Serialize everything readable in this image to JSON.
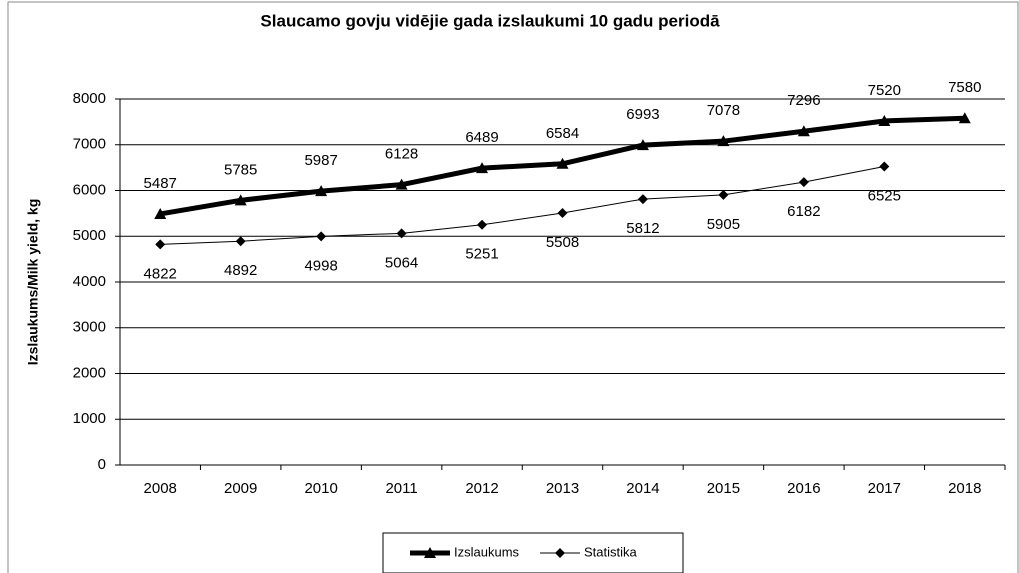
{
  "chart_data": {
    "type": "line",
    "title": "Slaucamo govju vidējie gada izslaukumi 10 gadu periodā",
    "y_label": "Izslaukums/Milk yield, kg",
    "categories": [
      "2008",
      "2009",
      "2010",
      "2011",
      "2012",
      "2013",
      "2014",
      "2015",
      "2016",
      "2017",
      "2018"
    ],
    "series": [
      {
        "name": "Izslaukums",
        "color": "#000000",
        "marker": "triangle",
        "values": [
          5487,
          5785,
          5987,
          6128,
          6489,
          6584,
          6993,
          7078,
          7296,
          7520,
          7580
        ]
      },
      {
        "name": "Statistika",
        "color": "#000000",
        "marker": "diamond",
        "values": [
          4822,
          4892,
          4998,
          5064,
          5251,
          5508,
          5812,
          5905,
          6182,
          6525,
          null
        ]
      }
    ],
    "ylim": [
      0,
      8000
    ],
    "yticks": [
      0,
      1000,
      2000,
      3000,
      4000,
      5000,
      6000,
      7000,
      8000
    ],
    "grid": true,
    "legend": "bottom"
  }
}
